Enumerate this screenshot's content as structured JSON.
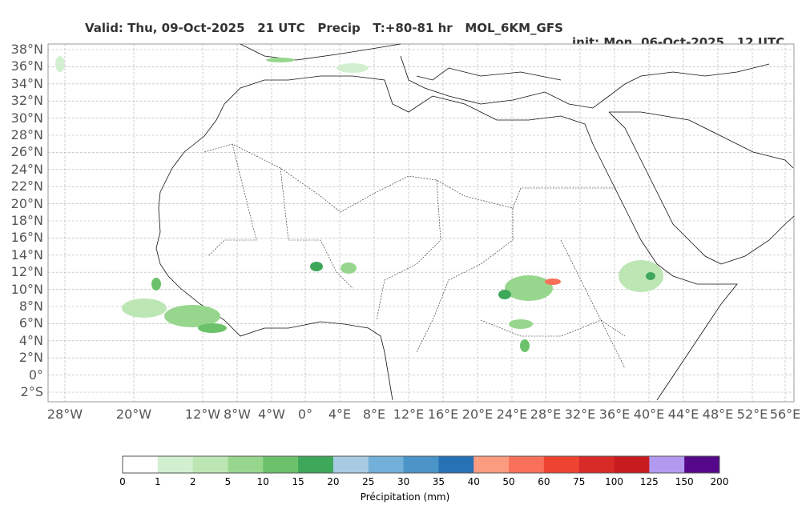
{
  "header": {
    "valid_text": "Valid: Thu, 09-Oct-2025   21 UTC   Precip   T:+80-81 hr   MOL_6KM_GFS",
    "init_text": "init: Mon, 06-Oct-2025   12 UTC"
  },
  "map": {
    "lat_labels": [
      "38°N",
      "36°N",
      "34°N",
      "32°N",
      "30°N",
      "28°N",
      "26°N",
      "24°N",
      "22°N",
      "20°N",
      "18°N",
      "16°N",
      "14°N",
      "12°N",
      "10°N",
      "8°N",
      "6°N",
      "4°N",
      "2°N",
      "0°",
      "2°S"
    ],
    "lon_labels": [
      "28°W",
      "20°W",
      "12°W",
      "8°W",
      "4°W",
      "0°",
      "4°E",
      "8°E",
      "12°E",
      "16°E",
      "20°E",
      "24°E",
      "28°E",
      "32°E",
      "36°E",
      "40°E",
      "44°E",
      "48°E",
      "52°E",
      "56°E"
    ],
    "colors": {
      "land_line": "#111111",
      "grid": "#b0b0b0",
      "frame": "#999999"
    }
  },
  "colorbar": {
    "title": "Précipitation (mm)",
    "ticks": [
      "0",
      "1",
      "2",
      "5",
      "10",
      "15",
      "20",
      "25",
      "30",
      "35",
      "40",
      "50",
      "60",
      "75",
      "100",
      "125",
      "150",
      "200"
    ],
    "colors": [
      "#ffffff",
      "#d2f0d0",
      "#bde6b5",
      "#97d68d",
      "#6cc26a",
      "#3ea85a",
      "#a7cbe2",
      "#72b0d9",
      "#4a94c8",
      "#2771b5",
      "#fb9b80",
      "#f8705a",
      "#ef4332",
      "#d82b28",
      "#c71c1f",
      "#b39af0",
      "#55088a"
    ]
  }
}
